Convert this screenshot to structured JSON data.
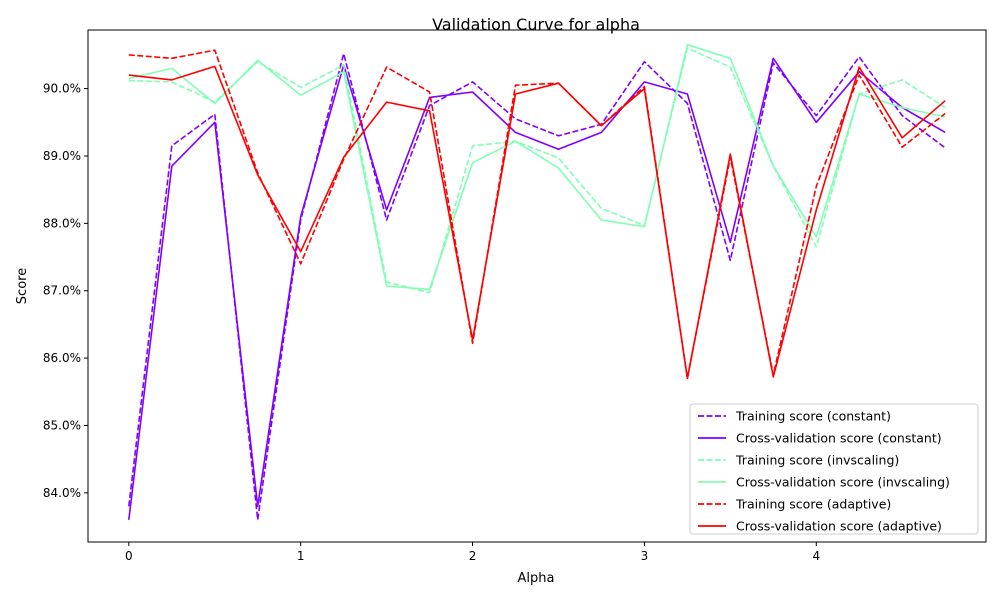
{
  "chart_data": {
    "type": "line",
    "title": "Validation Curve for alpha",
    "xlabel": "Alpha",
    "ylabel": "Score",
    "xlim": [
      -0.2375,
      4.9875
    ],
    "ylim": [
      0.8327,
      0.9087
    ],
    "xticks": [
      0,
      1,
      2,
      3,
      4
    ],
    "xtick_labels": [
      "0",
      "1",
      "2",
      "3",
      "4"
    ],
    "yticks": [
      0.84,
      0.85,
      0.86,
      0.87,
      0.88,
      0.89,
      0.9
    ],
    "ytick_labels": [
      "84.0%",
      "85.0%",
      "86.0%",
      "87.0%",
      "88.0%",
      "89.0%",
      "90.0%"
    ],
    "grid": false,
    "legend_position": "lower-right",
    "x": [
      0,
      0.25,
      0.5,
      0.75,
      1.0,
      1.25,
      1.5,
      1.75,
      2.0,
      2.25,
      2.5,
      2.75,
      3.0,
      3.25,
      3.5,
      3.75,
      4.0,
      4.25,
      4.5,
      4.75
    ],
    "series": [
      {
        "name": "Training score (constant)",
        "color": "#8000ff",
        "dash": true,
        "values": [
          0.838,
          0.8915,
          0.8962,
          0.836,
          0.8805,
          0.9052,
          0.8805,
          0.8975,
          0.901,
          0.8955,
          0.893,
          0.8947,
          0.904,
          0.8978,
          0.8745,
          0.9038,
          0.896,
          0.9047,
          0.896,
          0.8912
        ]
      },
      {
        "name": "Cross-validation score (constant)",
        "color": "#8000ff",
        "dash": false,
        "values": [
          0.836,
          0.8885,
          0.895,
          0.838,
          0.881,
          0.9035,
          0.882,
          0.8987,
          0.8995,
          0.8935,
          0.891,
          0.8935,
          0.901,
          0.8992,
          0.8772,
          0.9045,
          0.895,
          0.9025,
          0.8972,
          0.8935
        ]
      },
      {
        "name": "Training score (invscaling)",
        "color": "#80ffb4",
        "dash": true,
        "values": [
          0.9012,
          0.901,
          0.898,
          0.904,
          0.9002,
          0.9035,
          0.8713,
          0.8697,
          0.8915,
          0.8922,
          0.8897,
          0.8822,
          0.8797,
          0.906,
          0.9032,
          0.8885,
          0.8765,
          0.8992,
          0.9013,
          0.8972
        ]
      },
      {
        "name": "Cross-validation score (invscaling)",
        "color": "#80ffb4",
        "dash": false,
        "values": [
          0.9015,
          0.903,
          0.8978,
          0.9042,
          0.899,
          0.9025,
          0.8707,
          0.8702,
          0.889,
          0.8922,
          0.8882,
          0.8805,
          0.8795,
          0.9065,
          0.9045,
          0.8885,
          0.878,
          0.8992,
          0.8972,
          0.8958
        ]
      },
      {
        "name": "Training score (adaptive)",
        "color": "#ff0000",
        "dash": true,
        "values": [
          0.905,
          0.9045,
          0.9057,
          0.8875,
          0.874,
          0.8895,
          0.9032,
          0.8995,
          0.8622,
          0.9005,
          0.9008,
          0.8945,
          0.9003,
          0.857,
          0.8898,
          0.8575,
          0.8855,
          0.902,
          0.8913,
          0.8963
        ]
      },
      {
        "name": "Cross-validation score (adaptive)",
        "color": "#ff0000",
        "dash": false,
        "values": [
          0.902,
          0.9013,
          0.9033,
          0.8872,
          0.8758,
          0.8898,
          0.898,
          0.8967,
          0.8627,
          0.8992,
          0.9008,
          0.8945,
          0.9,
          0.857,
          0.8903,
          0.8572,
          0.882,
          0.9032,
          0.8927,
          0.8982
        ]
      }
    ]
  }
}
